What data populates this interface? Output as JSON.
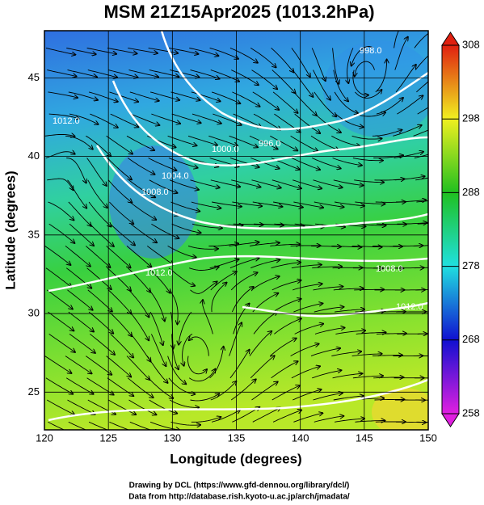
{
  "chart_data": {
    "type": "map",
    "title": "MSM 21Z15Apr2025 (1013.2hPa)",
    "x_label": "Longitude (degrees)",
    "y_label": "Latitude  (degrees)",
    "xlim": [
      120,
      150
    ],
    "xticks": [
      120,
      125,
      130,
      135,
      140,
      145,
      150
    ],
    "ylim": [
      22.6,
      48.0
    ],
    "yticks": [
      25,
      30,
      35,
      40,
      45
    ],
    "grid": true,
    "colorbar": {
      "lim": [
        258,
        308
      ],
      "ticks": [
        258,
        268,
        278,
        288,
        298,
        308
      ],
      "colors": [
        "#e020e0",
        "#1010d0",
        "#20e0e0",
        "#20c020",
        "#f0f020",
        "#e02010"
      ]
    },
    "contour_labels": [
      "998.0",
      "1000.0",
      "996.0",
      "1004.0",
      "1008.0",
      "1012.0",
      "1008.0",
      "1012.0",
      "1012.0"
    ],
    "credits": [
      "Drawing by DCL (https://www.gfd-dennou.org/library/dcl/)",
      "Data from http://database.rish.kyoto-u.ac.jp/arch/jmadata/"
    ]
  }
}
